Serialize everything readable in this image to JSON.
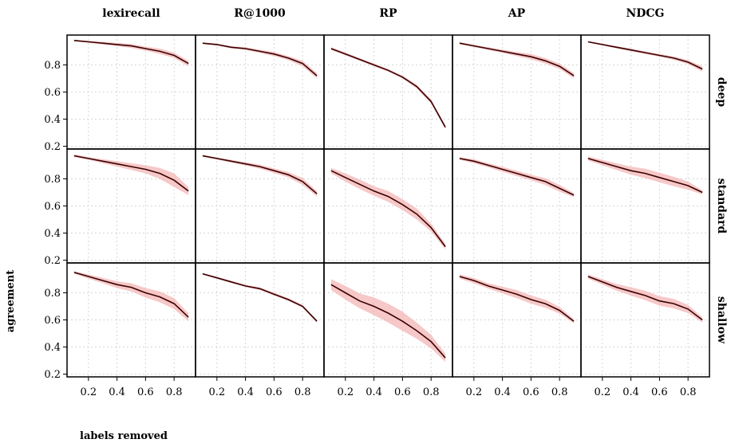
{
  "chart_data": {
    "type": "line",
    "xlabel": "labels removed",
    "ylabel": "agreement",
    "xlim": [
      0.05,
      0.95
    ],
    "ylim": [
      0.18,
      1.02
    ],
    "xticks": [
      "0.2",
      "0.4",
      "0.6",
      "0.8"
    ],
    "yticks": [
      "0.2",
      "0.4",
      "0.6",
      "0.8"
    ],
    "grid": true,
    "columns": [
      "lexirecall",
      "R@1000",
      "RP",
      "AP",
      "NDCG"
    ],
    "rows": [
      "deep",
      "standard",
      "shallow"
    ],
    "x": [
      0.1,
      0.2,
      0.3,
      0.4,
      0.5,
      0.6,
      0.7,
      0.8,
      0.9
    ],
    "panels": [
      {
        "row": "deep",
        "column": "lexirecall",
        "values": [
          0.98,
          0.97,
          0.96,
          0.95,
          0.94,
          0.92,
          0.9,
          0.87,
          0.81
        ],
        "lower": [
          0.975,
          0.963,
          0.95,
          0.938,
          0.925,
          0.905,
          0.88,
          0.85,
          0.79
        ],
        "upper": [
          0.985,
          0.977,
          0.97,
          0.962,
          0.955,
          0.935,
          0.92,
          0.89,
          0.83
        ]
      },
      {
        "row": "deep",
        "column": "R@1000",
        "values": [
          0.96,
          0.95,
          0.93,
          0.92,
          0.9,
          0.88,
          0.85,
          0.81,
          0.72
        ],
        "lower": [
          0.955,
          0.943,
          0.922,
          0.91,
          0.888,
          0.865,
          0.835,
          0.79,
          0.7
        ],
        "upper": [
          0.965,
          0.957,
          0.938,
          0.93,
          0.912,
          0.895,
          0.865,
          0.83,
          0.74
        ]
      },
      {
        "row": "deep",
        "column": "RP",
        "values": [
          0.92,
          0.88,
          0.84,
          0.8,
          0.76,
          0.71,
          0.64,
          0.53,
          0.34
        ],
        "lower": [
          0.91,
          0.87,
          0.83,
          0.79,
          0.75,
          0.7,
          0.625,
          0.515,
          0.325
        ],
        "upper": [
          0.93,
          0.89,
          0.85,
          0.81,
          0.77,
          0.72,
          0.655,
          0.545,
          0.355
        ]
      },
      {
        "row": "deep",
        "column": "AP",
        "values": [
          0.96,
          0.94,
          0.92,
          0.9,
          0.88,
          0.86,
          0.83,
          0.79,
          0.72
        ],
        "lower": [
          0.953,
          0.932,
          0.91,
          0.888,
          0.865,
          0.84,
          0.81,
          0.77,
          0.7
        ],
        "upper": [
          0.967,
          0.948,
          0.93,
          0.912,
          0.895,
          0.88,
          0.85,
          0.81,
          0.74
        ]
      },
      {
        "row": "deep",
        "column": "NDCG",
        "values": [
          0.97,
          0.95,
          0.93,
          0.91,
          0.89,
          0.87,
          0.85,
          0.82,
          0.77
        ],
        "lower": [
          0.965,
          0.943,
          0.922,
          0.9,
          0.88,
          0.86,
          0.838,
          0.805,
          0.75
        ],
        "upper": [
          0.975,
          0.957,
          0.938,
          0.92,
          0.9,
          0.88,
          0.862,
          0.835,
          0.79
        ]
      },
      {
        "row": "standard",
        "column": "lexirecall",
        "values": [
          0.97,
          0.95,
          0.93,
          0.91,
          0.89,
          0.87,
          0.84,
          0.79,
          0.71
        ],
        "lower": [
          0.96,
          0.94,
          0.915,
          0.89,
          0.865,
          0.84,
          0.8,
          0.74,
          0.68
        ],
        "upper": [
          0.98,
          0.96,
          0.945,
          0.93,
          0.915,
          0.9,
          0.88,
          0.84,
          0.74
        ]
      },
      {
        "row": "standard",
        "column": "R@1000",
        "values": [
          0.97,
          0.95,
          0.93,
          0.91,
          0.89,
          0.86,
          0.83,
          0.78,
          0.69
        ],
        "lower": [
          0.963,
          0.942,
          0.92,
          0.898,
          0.875,
          0.843,
          0.81,
          0.755,
          0.67
        ],
        "upper": [
          0.977,
          0.958,
          0.94,
          0.922,
          0.905,
          0.877,
          0.85,
          0.805,
          0.71
        ]
      },
      {
        "row": "standard",
        "column": "RP",
        "values": [
          0.86,
          0.81,
          0.76,
          0.71,
          0.67,
          0.61,
          0.54,
          0.44,
          0.3
        ],
        "lower": [
          0.84,
          0.78,
          0.725,
          0.675,
          0.63,
          0.57,
          0.5,
          0.41,
          0.28
        ],
        "upper": [
          0.88,
          0.84,
          0.795,
          0.745,
          0.71,
          0.65,
          0.58,
          0.47,
          0.32
        ]
      },
      {
        "row": "standard",
        "column": "AP",
        "values": [
          0.95,
          0.93,
          0.9,
          0.87,
          0.84,
          0.81,
          0.78,
          0.73,
          0.68
        ],
        "lower": [
          0.94,
          0.915,
          0.885,
          0.852,
          0.82,
          0.79,
          0.755,
          0.705,
          0.665
        ],
        "upper": [
          0.96,
          0.945,
          0.915,
          0.888,
          0.86,
          0.83,
          0.805,
          0.755,
          0.695
        ]
      },
      {
        "row": "standard",
        "column": "NDCG",
        "values": [
          0.95,
          0.92,
          0.89,
          0.86,
          0.84,
          0.81,
          0.78,
          0.75,
          0.7
        ],
        "lower": [
          0.935,
          0.9,
          0.865,
          0.83,
          0.805,
          0.775,
          0.745,
          0.72,
          0.685
        ],
        "upper": [
          0.965,
          0.94,
          0.915,
          0.89,
          0.875,
          0.845,
          0.815,
          0.78,
          0.715
        ]
      },
      {
        "row": "shallow",
        "column": "lexirecall",
        "values": [
          0.95,
          0.92,
          0.89,
          0.86,
          0.84,
          0.8,
          0.77,
          0.72,
          0.62
        ],
        "lower": [
          0.94,
          0.905,
          0.87,
          0.835,
          0.81,
          0.765,
          0.73,
          0.68,
          0.59
        ],
        "upper": [
          0.96,
          0.935,
          0.91,
          0.885,
          0.87,
          0.835,
          0.81,
          0.76,
          0.65
        ]
      },
      {
        "row": "shallow",
        "column": "R@1000",
        "values": [
          0.94,
          0.91,
          0.88,
          0.85,
          0.83,
          0.79,
          0.75,
          0.7,
          0.59
        ],
        "lower": [
          0.935,
          0.903,
          0.872,
          0.842,
          0.82,
          0.78,
          0.74,
          0.69,
          0.58
        ],
        "upper": [
          0.945,
          0.917,
          0.888,
          0.858,
          0.84,
          0.8,
          0.76,
          0.71,
          0.6
        ]
      },
      {
        "row": "shallow",
        "column": "RP",
        "values": [
          0.86,
          0.8,
          0.74,
          0.7,
          0.65,
          0.59,
          0.52,
          0.44,
          0.32
        ],
        "lower": [
          0.82,
          0.75,
          0.685,
          0.635,
          0.58,
          0.52,
          0.46,
          0.39,
          0.29
        ],
        "upper": [
          0.9,
          0.85,
          0.795,
          0.765,
          0.72,
          0.66,
          0.58,
          0.49,
          0.35
        ]
      },
      {
        "row": "shallow",
        "column": "AP",
        "values": [
          0.92,
          0.89,
          0.85,
          0.82,
          0.79,
          0.75,
          0.72,
          0.67,
          0.59
        ],
        "lower": [
          0.905,
          0.87,
          0.83,
          0.795,
          0.76,
          0.72,
          0.69,
          0.645,
          0.575
        ],
        "upper": [
          0.935,
          0.91,
          0.87,
          0.845,
          0.82,
          0.78,
          0.75,
          0.695,
          0.605
        ]
      },
      {
        "row": "shallow",
        "column": "NDCG",
        "values": [
          0.92,
          0.88,
          0.84,
          0.81,
          0.78,
          0.74,
          0.72,
          0.68,
          0.6
        ],
        "lower": [
          0.905,
          0.86,
          0.815,
          0.78,
          0.745,
          0.705,
          0.685,
          0.65,
          0.58
        ],
        "upper": [
          0.935,
          0.9,
          0.865,
          0.84,
          0.815,
          0.775,
          0.755,
          0.71,
          0.62
        ]
      }
    ],
    "colors": {
      "line": "#3a0000",
      "band": "#f4b6b6",
      "grid": "#d6d6d6",
      "border": "#000000"
    }
  }
}
